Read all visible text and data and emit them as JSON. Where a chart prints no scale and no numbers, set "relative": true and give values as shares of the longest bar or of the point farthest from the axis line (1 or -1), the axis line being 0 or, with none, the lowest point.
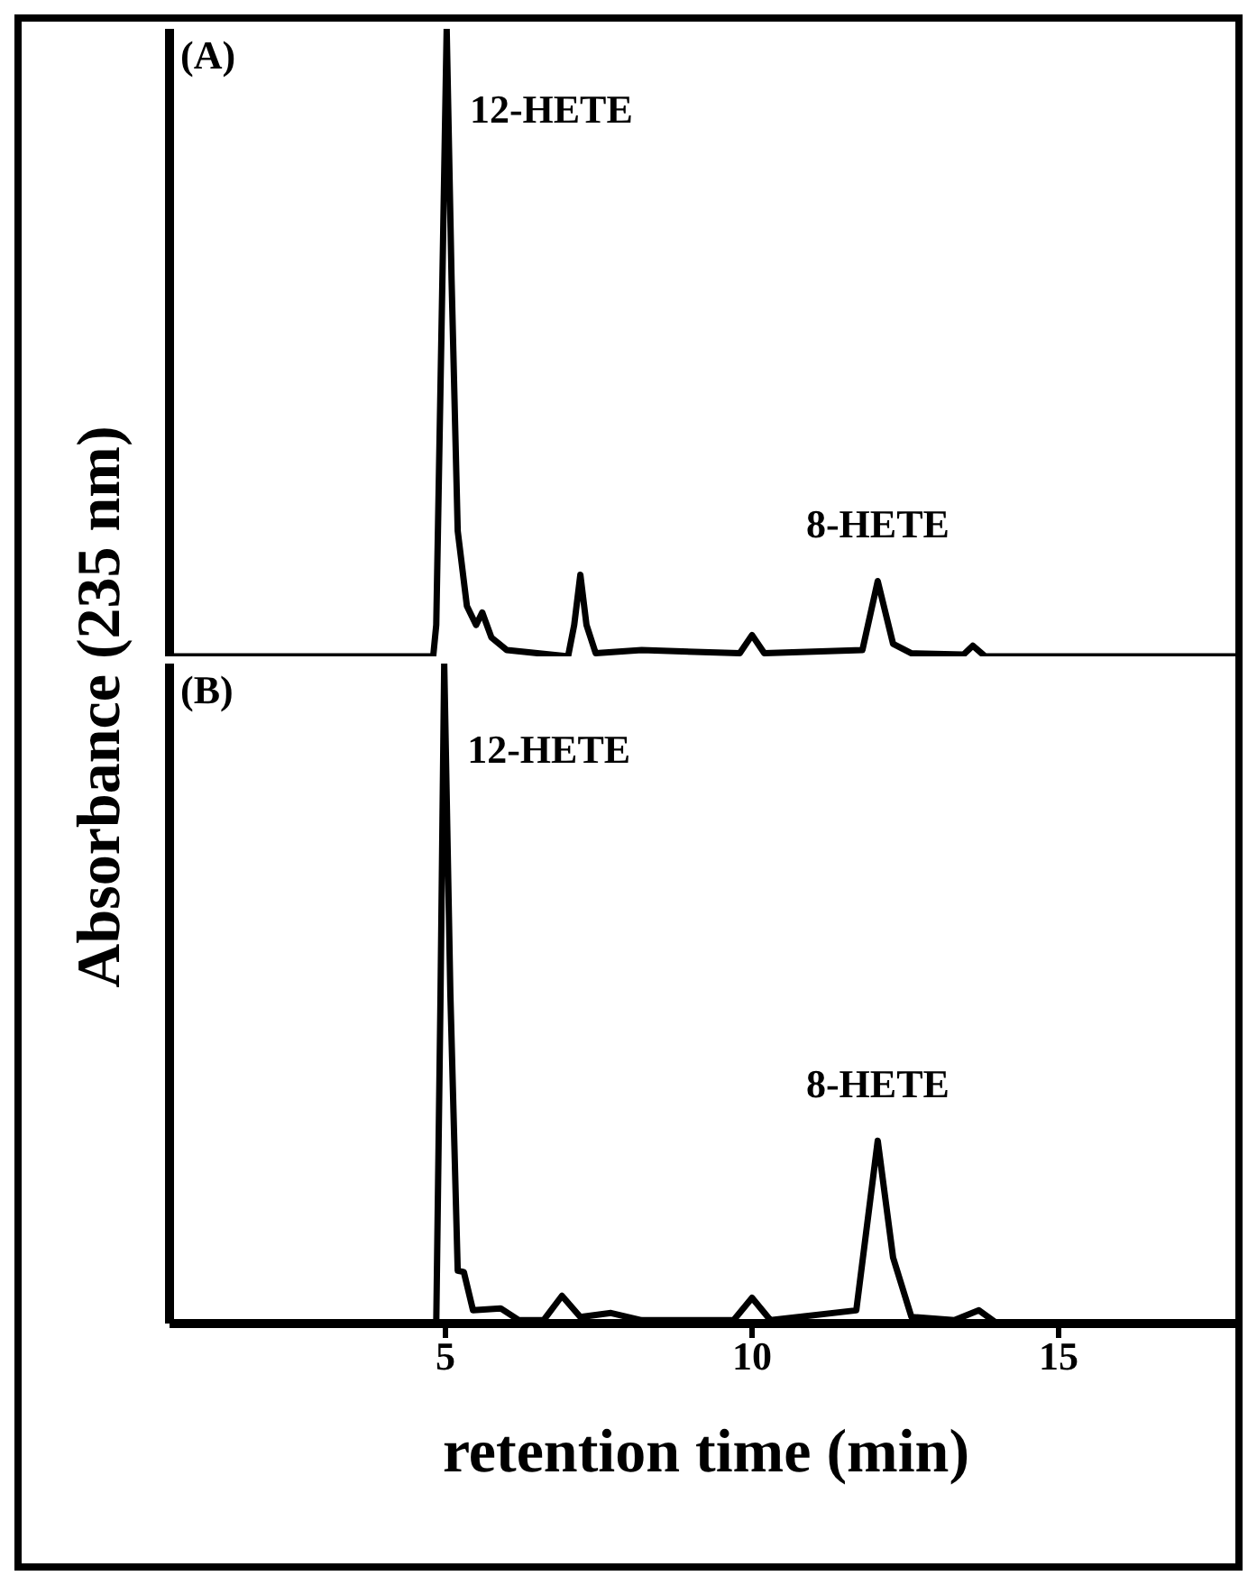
{
  "chart_data": [
    {
      "type": "line",
      "title": "(A)",
      "ylabel": "Absorbance (235 nm)",
      "relative": true,
      "xlim": [
        0.5,
        18
      ],
      "tick_labels": false,
      "grid": false,
      "legend": false,
      "marker": "none",
      "line_style": "solid",
      "x": [
        0.5,
        4.8,
        4.85,
        4.95,
        5.02,
        5.1,
        5.2,
        5.35,
        5.5,
        5.6,
        5.75,
        6.0,
        7.0,
        7.1,
        7.2,
        7.3,
        7.45,
        8.2,
        9.8,
        10.0,
        10.2,
        11.8,
        12.05,
        12.3,
        12.6,
        13.45,
        13.6,
        13.8,
        18
      ],
      "series": [
        {
          "color": "#000000",
          "values": [
            0,
            0,
            0.05,
            0.6,
            1.0,
            0.6,
            0.2,
            0.08,
            0.05,
            0.07,
            0.03,
            0.01,
            0,
            0.05,
            0.13,
            0.05,
            0.005,
            0.01,
            0.005,
            0.034,
            0.005,
            0.01,
            0.12,
            0.02,
            0.005,
            0.003,
            0.017,
            0,
            0
          ]
        }
      ],
      "annotations": [
        {
          "text": "12-HETE",
          "x": 5.02,
          "y": 1.0
        },
        {
          "text": "8-HETE",
          "x": 12.05,
          "y": 0.12
        }
      ]
    },
    {
      "type": "line",
      "title": "(B)",
      "xlabel": "retention time (min)",
      "relative": true,
      "xlim": [
        0.5,
        18
      ],
      "xticks": [
        5,
        10,
        15
      ],
      "tick_labels": "x",
      "grid": false,
      "legend": false,
      "marker": "none",
      "line_style": "solid",
      "x": [
        0.5,
        4.85,
        4.92,
        4.98,
        5.08,
        5.2,
        5.3,
        5.45,
        5.9,
        6.2,
        6.6,
        6.9,
        7.2,
        7.7,
        8.2,
        9.7,
        10.0,
        10.3,
        11.7,
        12.05,
        12.3,
        12.6,
        13.3,
        13.7,
        14.0,
        18
      ],
      "series": [
        {
          "color": "#000000",
          "values": [
            0,
            0,
            0.5,
            1.0,
            0.5,
            0.08,
            0.078,
            0.02,
            0.023,
            0.005,
            0.005,
            0.042,
            0.01,
            0.016,
            0.005,
            0.005,
            0.039,
            0.005,
            0.02,
            0.277,
            0.1,
            0.01,
            0.005,
            0.02,
            0,
            0
          ]
        }
      ],
      "annotations": [
        {
          "text": "12-HETE",
          "x": 4.98,
          "y": 1.0
        },
        {
          "text": "8-HETE",
          "x": 12.05,
          "y": 0.277
        }
      ]
    }
  ]
}
